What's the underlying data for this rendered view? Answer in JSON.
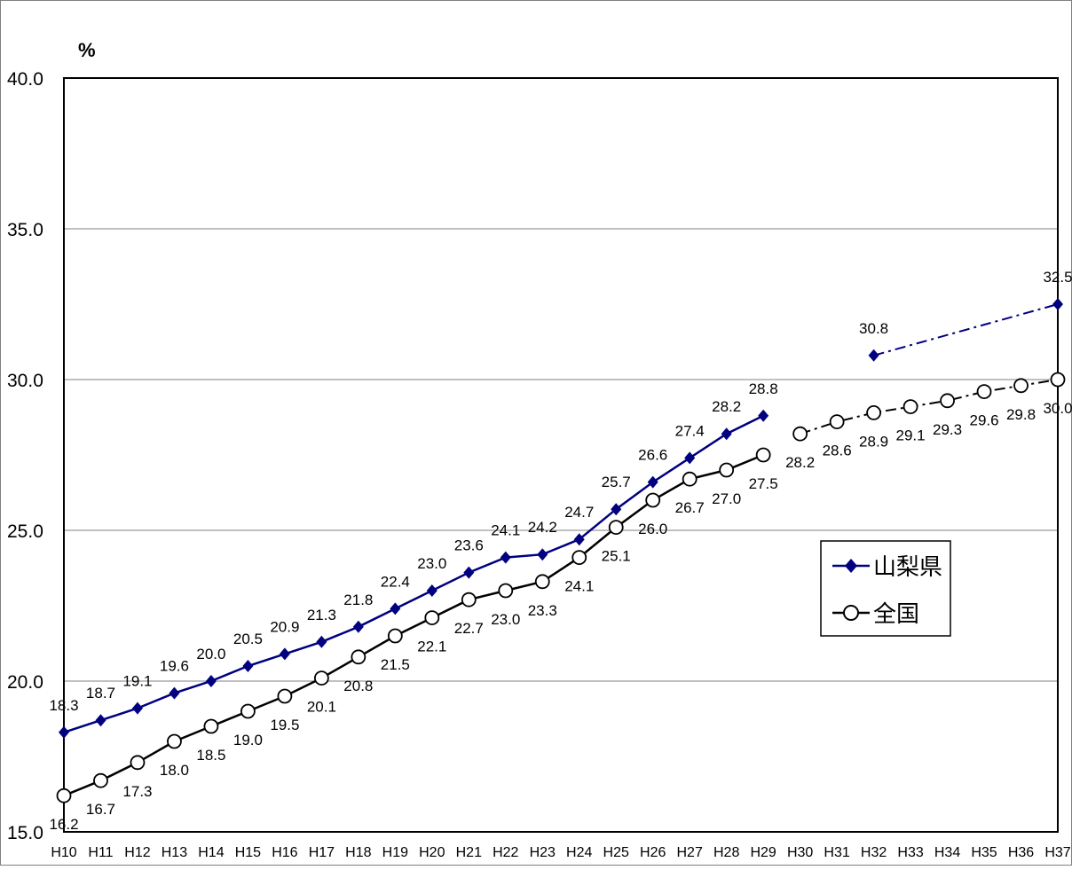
{
  "chart_data": {
    "type": "line",
    "ylabel_unit": "%",
    "ylim": [
      15.0,
      40.0
    ],
    "y_ticks": [
      "15.0",
      "20.0",
      "25.0",
      "30.0",
      "35.0",
      "40.0"
    ],
    "grid": true,
    "legend_position": "right",
    "categories": [
      "H10",
      "H11",
      "H12",
      "H13",
      "H14",
      "H15",
      "H16",
      "H17",
      "H18",
      "H19",
      "H20",
      "H21",
      "H22",
      "H23",
      "H24",
      "H25",
      "H26",
      "H27",
      "H28",
      "H29",
      "H30",
      "H31",
      "H32",
      "H33",
      "H34",
      "H35",
      "H36",
      "H37"
    ],
    "series": [
      {
        "name": "山梨県",
        "color": "#000080",
        "marker": "diamond",
        "values": [
          18.3,
          18.7,
          19.1,
          19.6,
          20.0,
          20.5,
          20.9,
          21.3,
          21.8,
          22.4,
          23.0,
          23.6,
          24.1,
          24.2,
          24.7,
          25.7,
          26.6,
          27.4,
          28.2,
          28.8,
          null,
          null,
          30.8,
          null,
          null,
          null,
          null,
          32.5
        ],
        "labels": [
          "18.3",
          "18.7",
          "19.1",
          "19.6",
          "20.0",
          "20.5",
          "20.9",
          "21.3",
          "21.8",
          "22.4",
          "23.0",
          "23.6",
          "24.1",
          "24.2",
          "24.7",
          "25.7",
          "26.6",
          "27.4",
          "28.2",
          "28.8",
          null,
          null,
          "30.8",
          null,
          null,
          null,
          null,
          "32.5"
        ],
        "projection_from": 22
      },
      {
        "name": "全国",
        "color": "#000000",
        "marker": "circle",
        "values": [
          16.2,
          16.7,
          17.3,
          18.0,
          18.5,
          19.0,
          19.5,
          20.1,
          20.8,
          21.5,
          22.1,
          22.7,
          23.0,
          23.3,
          24.1,
          25.1,
          26.0,
          26.7,
          27.0,
          27.5,
          28.2,
          28.6,
          28.9,
          29.1,
          29.3,
          29.6,
          29.8,
          30.0
        ],
        "labels": [
          "16.2",
          "16.7",
          "17.3",
          "18.0",
          "18.5",
          "19.0",
          "19.5",
          "20.1",
          "20.8",
          "21.5",
          "22.1",
          "22.7",
          "23.0",
          "23.3",
          "24.1",
          "25.1",
          "26.0",
          "26.7",
          "27.0",
          "27.5",
          "28.2",
          "28.6",
          "28.9",
          "29.1",
          "29.3",
          "29.6",
          "29.8",
          "30.0"
        ],
        "projection_from": 20
      }
    ]
  }
}
